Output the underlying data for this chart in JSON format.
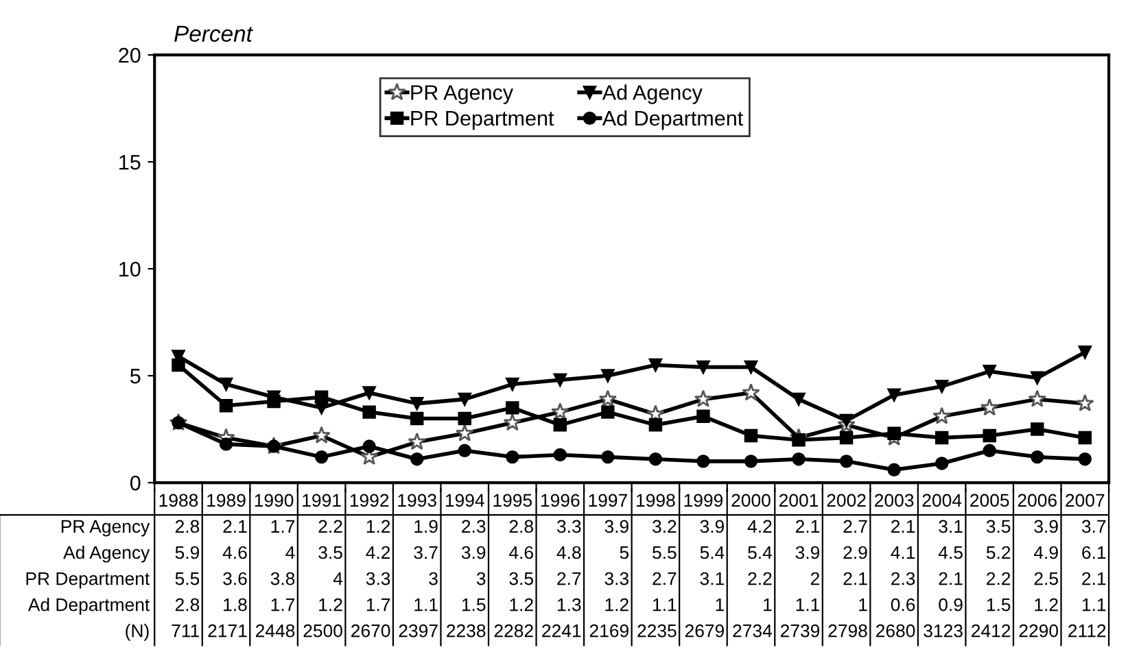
{
  "chart_data": {
    "type": "line",
    "ylabel": "Percent",
    "categories": [
      "1988",
      "1989",
      "1990",
      "1991",
      "1992",
      "1993",
      "1994",
      "1995",
      "1996",
      "1997",
      "1998",
      "1999",
      "2000",
      "2001",
      "2002",
      "2003",
      "2004",
      "2005",
      "2006",
      "2007"
    ],
    "series": [
      {
        "name": "PR Agency",
        "color": "#000000",
        "marker": "star",
        "values": [
          2.8,
          2.1,
          1.7,
          2.2,
          1.2,
          1.9,
          2.3,
          2.8,
          3.3,
          3.9,
          3.2,
          3.9,
          4.2,
          2.1,
          2.7,
          2.1,
          3.1,
          3.5,
          3.9,
          3.7
        ]
      },
      {
        "name": "Ad Agency",
        "color": "#000000",
        "marker": "triangle",
        "values": [
          5.9,
          4.6,
          4,
          3.5,
          4.2,
          3.7,
          3.9,
          4.6,
          4.8,
          5,
          5.5,
          5.4,
          5.4,
          3.9,
          2.9,
          4.1,
          4.5,
          5.2,
          4.9,
          6.1
        ]
      },
      {
        "name": "PR Department",
        "color": "#000000",
        "marker": "square",
        "values": [
          5.5,
          3.6,
          3.8,
          4,
          3.3,
          3,
          3,
          3.5,
          2.7,
          3.3,
          2.7,
          3.1,
          2.2,
          2,
          2.1,
          2.3,
          2.1,
          2.2,
          2.5,
          2.1
        ]
      },
      {
        "name": "Ad Department",
        "color": "#000000",
        "marker": "circle",
        "values": [
          2.8,
          1.8,
          1.7,
          1.2,
          1.7,
          1.1,
          1.5,
          1.2,
          1.3,
          1.2,
          1.1,
          1,
          1,
          1.1,
          1,
          0.6,
          0.9,
          1.5,
          1.2,
          1.1
        ]
      }
    ],
    "ylim": [
      0,
      20
    ],
    "yticks": [
      0,
      5,
      10,
      15,
      20
    ],
    "grid": false,
    "legend": "top",
    "data_labels": true,
    "annotations": [
      "(N)",
      "711",
      "2171",
      "2448",
      "2500",
      "2670",
      "2397",
      "2238",
      "2282",
      "2241",
      "2169",
      "2235",
      "2679",
      "2734",
      "2739",
      "2798",
      "2680",
      "3123",
      "2412",
      "2290",
      "2112"
    ]
  }
}
